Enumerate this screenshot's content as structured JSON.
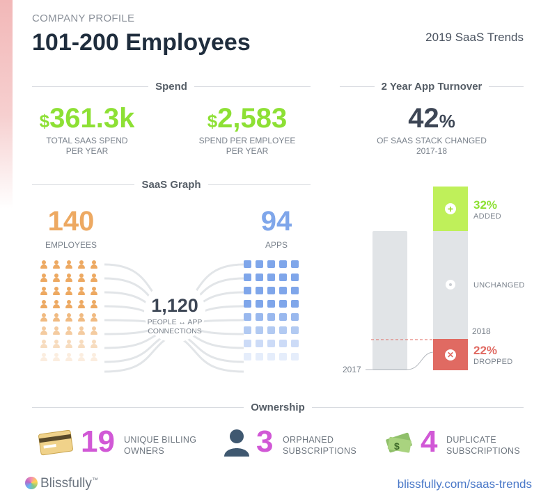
{
  "header": {
    "eyebrow": "COMPANY PROFILE",
    "title": "101-200 Employees",
    "trend_label": "2019 SaaS Trends"
  },
  "spend": {
    "heading": "Spend",
    "total": {
      "currency": "$",
      "value": "361.3k",
      "caption_1": "TOTAL SAAS SPEND",
      "caption_2": "PER YEAR"
    },
    "per_employee": {
      "currency": "$",
      "value": "2,583",
      "caption_1": "SPEND PER EMPLOYEE",
      "caption_2": "PER YEAR"
    }
  },
  "turnover": {
    "heading": "2 Year App Turnover",
    "value": "42",
    "unit": "%",
    "caption_1": "OF SAAS STACK CHANGED",
    "caption_2": "2017-18"
  },
  "graph": {
    "heading": "SaaS Graph",
    "employees_value": "140",
    "employees_label": "EMPLOYEES",
    "apps_value": "94",
    "apps_label": "APPS",
    "connections_value": "1,120",
    "connections_caption_1": "PEOPLE ↔ APP",
    "connections_caption_2": "CONNECTIONS"
  },
  "turnover_chart": {
    "year_2017": "2017",
    "year_2018": "2018",
    "added_pct": "32%",
    "added_label": "ADDED",
    "unchanged_label": "UNCHANGED",
    "dropped_pct": "22%",
    "dropped_label": "DROPPED",
    "added_color": "#bff05a",
    "unchanged_color": "#e1e4e7",
    "dropped_color": "#e06a62"
  },
  "ownership": {
    "heading": "Ownership",
    "billing": {
      "value": "19",
      "caption_1": "UNIQUE BILLING",
      "caption_2": "OWNERS",
      "icon": "credit-card-icon"
    },
    "orphaned": {
      "value": "3",
      "caption_1": "ORPHANED",
      "caption_2": "SUBSCRIPTIONS",
      "icon": "person-icon"
    },
    "duplicate": {
      "value": "4",
      "caption_1": "DUPLICATE",
      "caption_2": "SUBSCRIPTIONS",
      "icon": "money-icon"
    }
  },
  "footer": {
    "brand": "Blissfully",
    "trademark": "™",
    "link": "blissfully.com/saas-trends"
  },
  "colors": {
    "green": "#8de034",
    "orange": "#eda962",
    "blue": "#7fa6ea",
    "pink": "#d158d6",
    "dark": "#3d4655"
  }
}
